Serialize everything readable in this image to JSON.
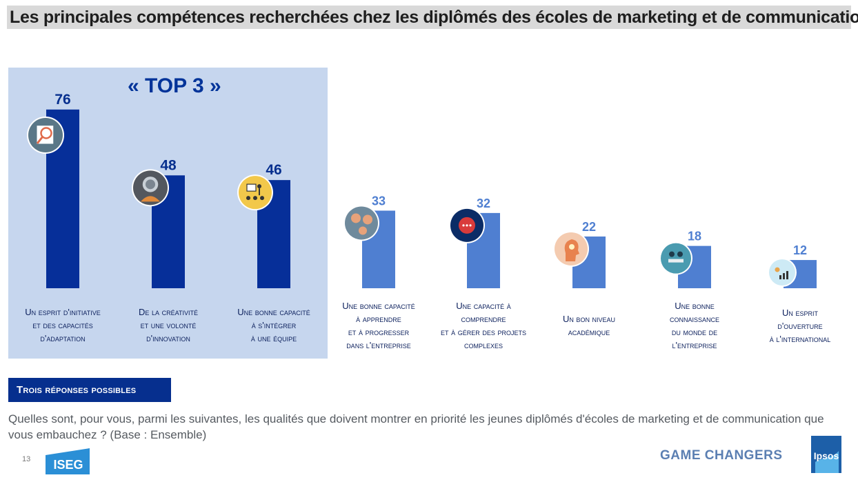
{
  "title": "Les principales compétences recherchées chez les diplômés des écoles de marketing et de communication",
  "top3_label": "« TOP 3 »",
  "chart_data": {
    "type": "bar",
    "categories": [
      [
        "Un esprit d'initiative",
        "et des capacités",
        "d'adaptation"
      ],
      [
        "De la créativité",
        "et une volonté",
        "d'innovation"
      ],
      [
        "Une bonne capacité",
        "à s'intégrer",
        "à une équipe"
      ],
      [
        "Une bonne capacité",
        "à apprendre",
        "et à progresser",
        "dans l'entreprise"
      ],
      [
        "Une capacité à",
        "comprendre",
        "et à gérer des projets",
        "complexes"
      ],
      [
        "Un bon niveau",
        "académique"
      ],
      [
        "Une bonne",
        "connaissance",
        "du monde de",
        "l'entreprise"
      ],
      [
        "Un esprit",
        "d'ouverture",
        "à l'international"
      ]
    ],
    "values": [
      76,
      48,
      46,
      33,
      32,
      22,
      18,
      12
    ],
    "highlight_count": 3,
    "colors": {
      "top": "#062f99",
      "other": "#4f7fd1",
      "top_value": "#062f8e",
      "other_value": "#4f7fd1"
    },
    "icons": [
      "magnifier-chart-icon",
      "astronaut-icon",
      "team-presentation-icon",
      "gears-head-icon",
      "chat-bubble-icon",
      "head-lightbulb-icon",
      "business-meeting-icon",
      "growth-chart-icon"
    ]
  },
  "badge": "Trois réponses possibles",
  "question": "Quelles sont, pour vous, parmi les suivantes, les qualités que doivent montrer en priorité les jeunes diplômés d'écoles de marketing et de communication que vous embauchez ? (Base : Ensemble)",
  "page_number": "13",
  "iseg_logo": "ISEG",
  "footer_brand": "GAME CHANGERS",
  "ipsos_logo": "Ipsos"
}
